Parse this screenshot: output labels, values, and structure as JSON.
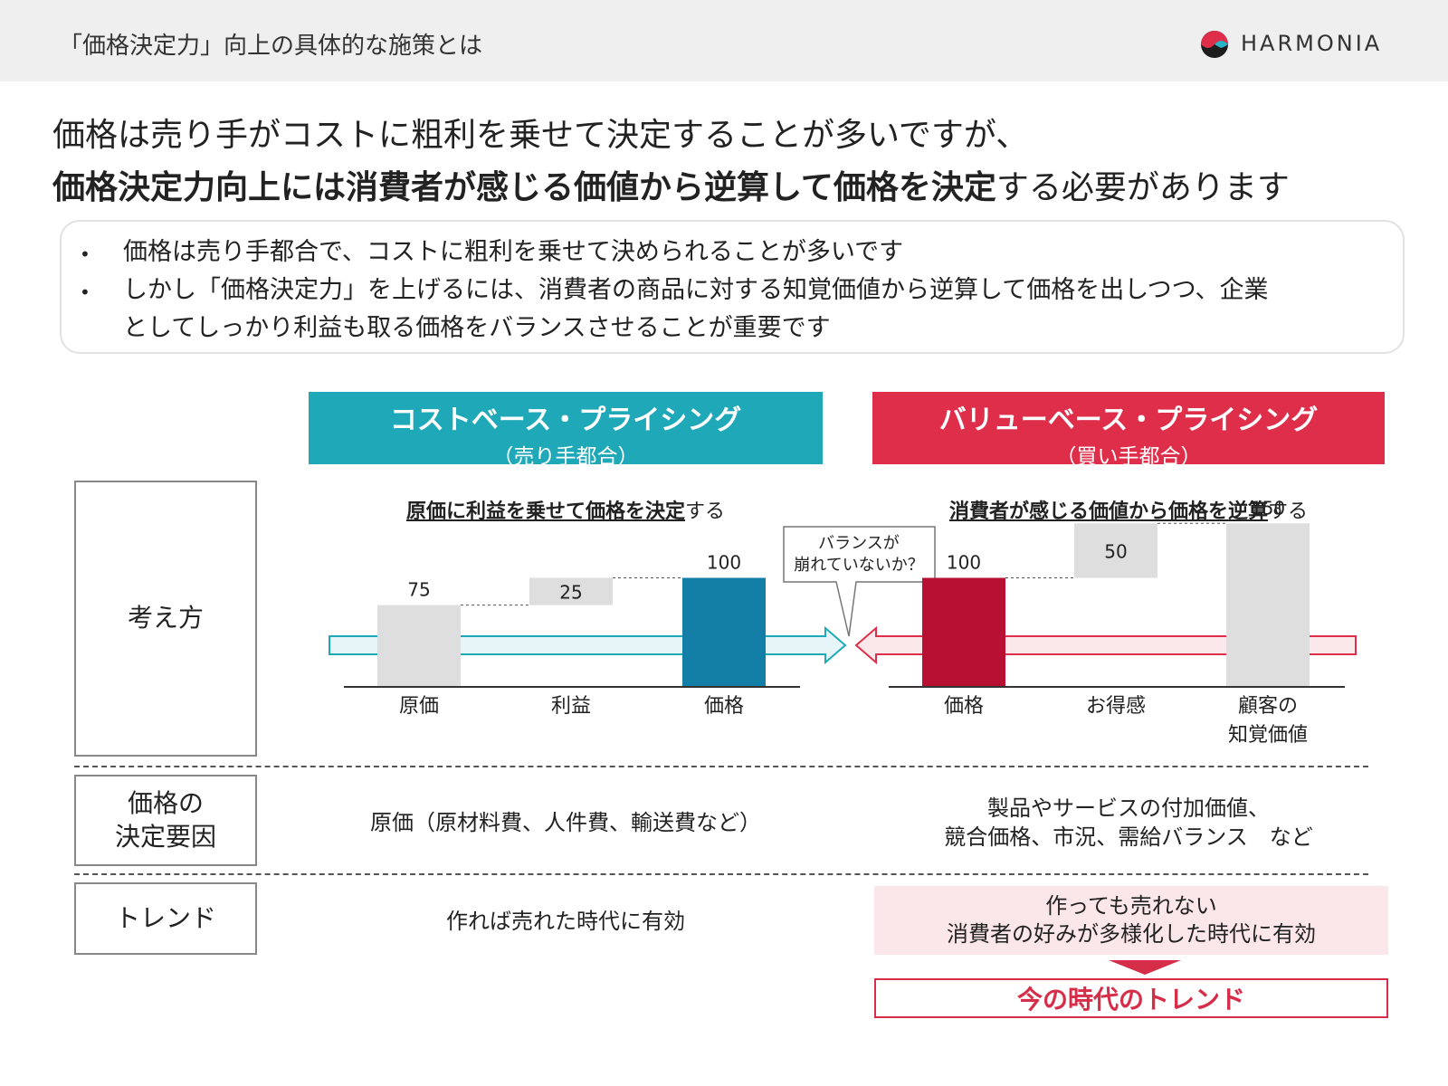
{
  "header": {
    "title": "「価格決定力」向上の具体的な施策とは",
    "logo_text": "HARMONIA"
  },
  "headline": {
    "line1": "価格は売り手がコストに粗利を乗せて決定することが多いですが、",
    "line2_bold": "価格決定力向上には消費者が感じる価値から逆算して価格を決定",
    "line2_rest": "する必要があります"
  },
  "summary": {
    "bullet1": "価格は売り手都合で、コストに粗利を乗せて決められることが多いです",
    "bullet2_line1": "しかし「価格決定力」を上げるには、消費者の商品に対する知覚価値から逆算して価格を出しつつ、企業",
    "bullet2_line2": "としてしっかり利益も取る価格をバランスさせることが重要です",
    "bullet_symbol": "•"
  },
  "cost_based": {
    "title": "コストベース・プライシング",
    "subtitle": "（売り手都合）",
    "subhead_bold": "原価に利益を乗せて価格を決定",
    "subhead_rest": "する"
  },
  "value_based": {
    "title": "バリューベース・プライシング",
    "subtitle": "（買い手都合）",
    "subhead_bold": "消費者が感じる価値から価格を逆算",
    "subhead_rest": "する"
  },
  "row_labels": {
    "approach": "考え方",
    "factors_line1": "価格の",
    "factors_line2": "決定要因",
    "trend": "トレンド"
  },
  "balance_callout": {
    "line1": "バランスが",
    "line2": "崩れていないか？"
  },
  "factors": {
    "cost": "原価（原材料費、人件費、輸送費など）",
    "value_line1": "製品やサービスの付加価値、",
    "value_line2": "競合価格、市況、需給バランス　など"
  },
  "trend": {
    "cost": "作れば売れた時代に有効",
    "value_line1": "作っても売れない",
    "value_line2": "消費者の好みが多様化した時代に有効",
    "now": "今の時代のトレンド"
  },
  "colors": {
    "teal": "#1fa9b8",
    "red": "#de2e4a",
    "bar_gray": "#dedede",
    "cost_price_bar": "#137fa6",
    "value_price_bar": "#b81032"
  },
  "chart_data": [
    {
      "type": "bar",
      "subtype": "waterfall",
      "categories": [
        "原価",
        "利益",
        "価格"
      ],
      "values": [
        75,
        25,
        100
      ],
      "kinds": [
        "base",
        "increment",
        "total"
      ],
      "ylim": [
        0,
        160
      ]
    },
    {
      "type": "bar",
      "subtype": "waterfall",
      "categories": [
        "価格",
        "お得感",
        "顧客の\n知覚価値"
      ],
      "category_lines": [
        [
          "価格"
        ],
        [
          "お得感"
        ],
        [
          "顧客の",
          "知覚価値"
        ]
      ],
      "values": [
        100,
        50,
        150
      ],
      "kinds": [
        "base",
        "increment",
        "total"
      ],
      "ylim": [
        0,
        160
      ]
    }
  ]
}
